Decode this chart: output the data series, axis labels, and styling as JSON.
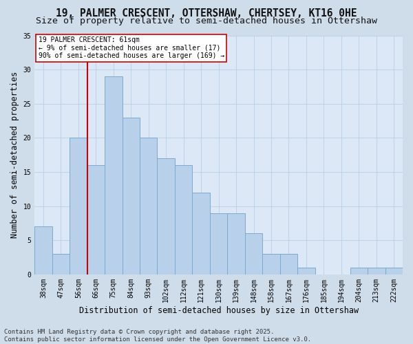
{
  "title_line1": "19, PALMER CRESCENT, OTTERSHAW, CHERTSEY, KT16 0HE",
  "title_line2": "Size of property relative to semi-detached houses in Ottershaw",
  "xlabel": "Distribution of semi-detached houses by size in Ottershaw",
  "ylabel": "Number of semi-detached properties",
  "categories": [
    "38sqm",
    "47sqm",
    "56sqm",
    "66sqm",
    "75sqm",
    "84sqm",
    "93sqm",
    "102sqm",
    "112sqm",
    "121sqm",
    "130sqm",
    "139sqm",
    "148sqm",
    "158sqm",
    "167sqm",
    "176sqm",
    "185sqm",
    "194sqm",
    "204sqm",
    "213sqm",
    "222sqm"
  ],
  "values": [
    7,
    3,
    20,
    16,
    29,
    23,
    20,
    17,
    16,
    12,
    9,
    9,
    6,
    3,
    3,
    1,
    0,
    0,
    1,
    1,
    1
  ],
  "bar_color": "#b8d0ea",
  "bar_edge_color": "#7aaacf",
  "vline_color": "#cc0000",
  "annotation_text": "19 PALMER CRESCENT: 61sqm\n← 9% of semi-detached houses are smaller (17)\n90% of semi-detached houses are larger (169) →",
  "annotation_box_color": "#ffffff",
  "annotation_box_edge": "#cc0000",
  "bg_color": "#dce8f5",
  "fig_bg_color": "#cfdcea",
  "footer_line1": "Contains HM Land Registry data © Crown copyright and database right 2025.",
  "footer_line2": "Contains public sector information licensed under the Open Government Licence v3.0.",
  "ylim": [
    0,
    35
  ],
  "yticks": [
    0,
    5,
    10,
    15,
    20,
    25,
    30,
    35
  ],
  "title_fontsize": 10.5,
  "subtitle_fontsize": 9.5,
  "tick_fontsize": 7,
  "label_fontsize": 8.5,
  "footer_fontsize": 6.5,
  "annotation_fontsize": 7
}
